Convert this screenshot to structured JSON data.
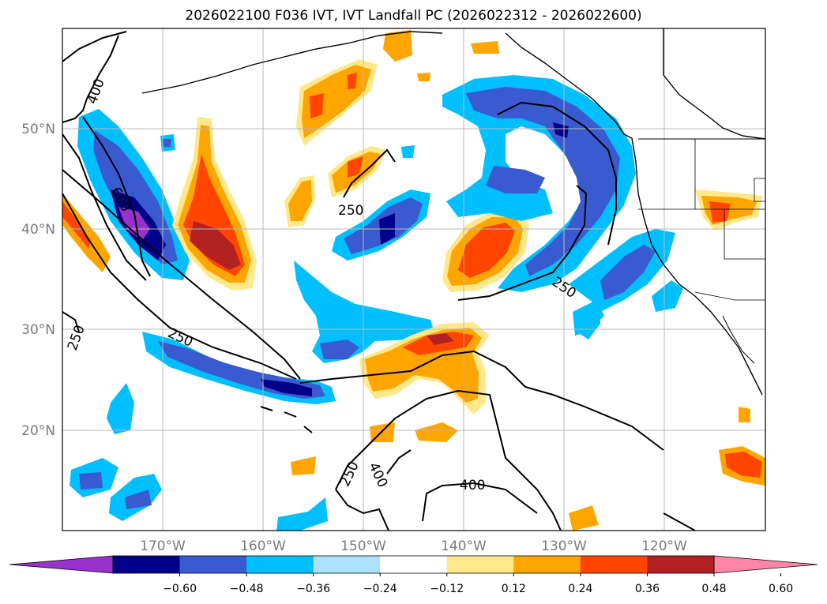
{
  "title": "2026022100 F036 IVT, IVT Landfall PC (2026022312 - 2026022600)",
  "lat_labels": [
    "50°N",
    "40°N",
    "30°N",
    "20°N"
  ],
  "lon_labels": [
    "170°W",
    "160°W",
    "150°W",
    "140°W",
    "130°W",
    "120°W"
  ],
  "contour_labels": [
    "400",
    "600",
    "250",
    "250",
    "250",
    "250",
    "250",
    "400",
    "400"
  ],
  "colorbar": {
    "colors": [
      "#9932cc",
      "#00008b",
      "#3a5bd0",
      "#00bfff",
      "#ade1fb",
      "#ffffff",
      "#ffe88a",
      "#ffa500",
      "#ff4500",
      "#b22222",
      "#ff85a8"
    ],
    "tick_labels": [
      "−0.60",
      "−0.48",
      "−0.36",
      "−0.24",
      "−0.12",
      "0.12",
      "0.24",
      "0.36",
      "0.48",
      "0.60"
    ]
  }
}
